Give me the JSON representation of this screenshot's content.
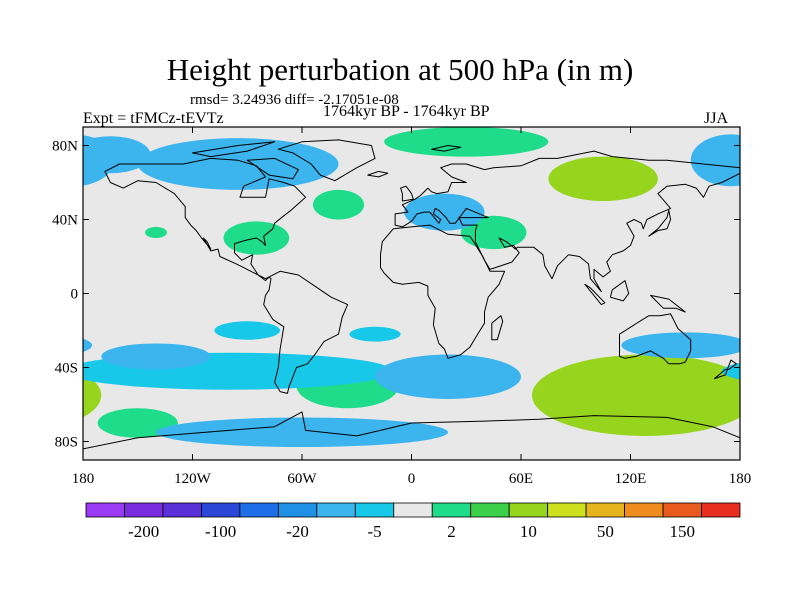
{
  "header": {
    "title": "Height perturbation at 500 hPa (in m)",
    "stats": "rmsd= 3.24936 diff= -2.17051e-08",
    "experiment": "Expt = tFMCz-tEVTz",
    "period": "1764kyr BP - 1764kyr BP",
    "season": "JJA"
  },
  "colors": {
    "levels": [
      "#9b3af5",
      "#7a2de0",
      "#5a30d8",
      "#2a47d8",
      "#1e6ee8",
      "#1e91e6",
      "#3cb4ee",
      "#17c8e8",
      "#e8e8e8",
      "#1edc8a",
      "#3ad04a",
      "#96d41e",
      "#cce01e",
      "#e8b41e",
      "#ee8c1e",
      "#e85a1e",
      "#e82e1e"
    ],
    "neutral": "#e8e8e8",
    "coast": "#000000"
  },
  "chart_data": {
    "type": "filled-contour-map",
    "title": "Height perturbation at 500 hPa (in m)",
    "variable": "500 hPa geopotential height perturbation",
    "units": "m",
    "season": "JJA",
    "xlim": [
      -180,
      180
    ],
    "ylim": [
      -90,
      90
    ],
    "x_ticks": [
      {
        "value": -180,
        "label": "180"
      },
      {
        "value": -120,
        "label": "120W"
      },
      {
        "value": -60,
        "label": "60W"
      },
      {
        "value": 0,
        "label": "0"
      },
      {
        "value": 60,
        "label": "60E"
      },
      {
        "value": 120,
        "label": "120E"
      },
      {
        "value": 180,
        "label": "180"
      }
    ],
    "y_ticks": [
      {
        "value": 80,
        "label": "80N"
      },
      {
        "value": 40,
        "label": "40N"
      },
      {
        "value": 0,
        "label": "0"
      },
      {
        "value": -40,
        "label": "40S"
      },
      {
        "value": -80,
        "label": "80S"
      }
    ],
    "colorbar": {
      "labels": [
        {
          "index": 1,
          "label": "-200"
        },
        {
          "index": 3,
          "label": "-100"
        },
        {
          "index": 5,
          "label": "-20"
        },
        {
          "index": 7,
          "label": "-5"
        },
        {
          "index": 9,
          "label": "2"
        },
        {
          "index": 11,
          "label": "10"
        },
        {
          "index": 13,
          "label": "50"
        },
        {
          "index": 15,
          "label": "150"
        }
      ]
    },
    "anomalies": [
      {
        "name": "south-indian-ocean-high",
        "lon": 128,
        "lat": -55,
        "rlon": 40,
        "rlat": 14,
        "value": 15
      },
      {
        "name": "south-indian-ocean-mid",
        "lon": 128,
        "lat": -55,
        "rlon": 62,
        "rlat": 22,
        "value": 6
      },
      {
        "name": "south-pacific-high",
        "lon": -150,
        "lat": -70,
        "rlon": 22,
        "rlat": 8,
        "value": 4
      },
      {
        "name": "south-atlantic-high",
        "lon": -35,
        "lat": -50,
        "rlon": 28,
        "rlat": 12,
        "value": 4
      },
      {
        "name": "arctic-high",
        "lon": 30,
        "lat": 82,
        "rlon": 45,
        "rlat": 8,
        "value": 4
      },
      {
        "name": "siberia-high",
        "lon": 105,
        "lat": 62,
        "rlon": 30,
        "rlat": 12,
        "value": 5
      },
      {
        "name": "n-atlantic-high",
        "lon": -40,
        "lat": 48,
        "rlon": 14,
        "rlat": 8,
        "value": 3
      },
      {
        "name": "middle-east-high",
        "lon": 45,
        "lat": 33,
        "rlon": 18,
        "rlat": 9,
        "value": 3
      },
      {
        "name": "north-america-high",
        "lon": -85,
        "lat": 30,
        "rlon": 18,
        "rlat": 9,
        "value": 3
      },
      {
        "name": "n-pacific-small-high",
        "lon": -140,
        "lat": 33,
        "rlon": 6,
        "rlat": 3,
        "value": 3
      },
      {
        "name": "arctic-canada-low",
        "lon": -95,
        "lat": 70,
        "rlon": 55,
        "rlat": 14,
        "value": -6
      },
      {
        "name": "n-pacific-low",
        "lon": -165,
        "lat": 75,
        "rlon": 22,
        "rlat": 10,
        "value": -5
      },
      {
        "name": "europe-low",
        "lon": 18,
        "lat": 44,
        "rlon": 22,
        "rlat": 10,
        "value": -6
      },
      {
        "name": "ne-pacific-low",
        "lon": 175,
        "lat": 72,
        "rlon": 22,
        "rlat": 14,
        "value": -5
      },
      {
        "name": "s-pacific-band-low",
        "lon": -100,
        "lat": -42,
        "rlon": 90,
        "rlat": 10,
        "value": -4
      },
      {
        "name": "s-pacific-deep-low",
        "lon": -140,
        "lat": -34,
        "rlon": 30,
        "rlat": 7,
        "value": -6
      },
      {
        "name": "antarctic-low",
        "lon": -60,
        "lat": -75,
        "rlon": 80,
        "rlat": 8,
        "value": -5
      },
      {
        "name": "s-atlantic-low",
        "lon": 20,
        "lat": -45,
        "rlon": 40,
        "rlat": 12,
        "value": -5
      },
      {
        "name": "australia-low",
        "lon": 150,
        "lat": -28,
        "rlon": 35,
        "rlat": 7,
        "value": -5
      },
      {
        "name": "tropical-pacific-low",
        "lon": -90,
        "lat": -20,
        "rlon": 18,
        "rlat": 5,
        "value": -3
      },
      {
        "name": "tropical-atlantic-low",
        "lon": -20,
        "lat": -22,
        "rlon": 14,
        "rlat": 4,
        "value": -3
      }
    ]
  }
}
